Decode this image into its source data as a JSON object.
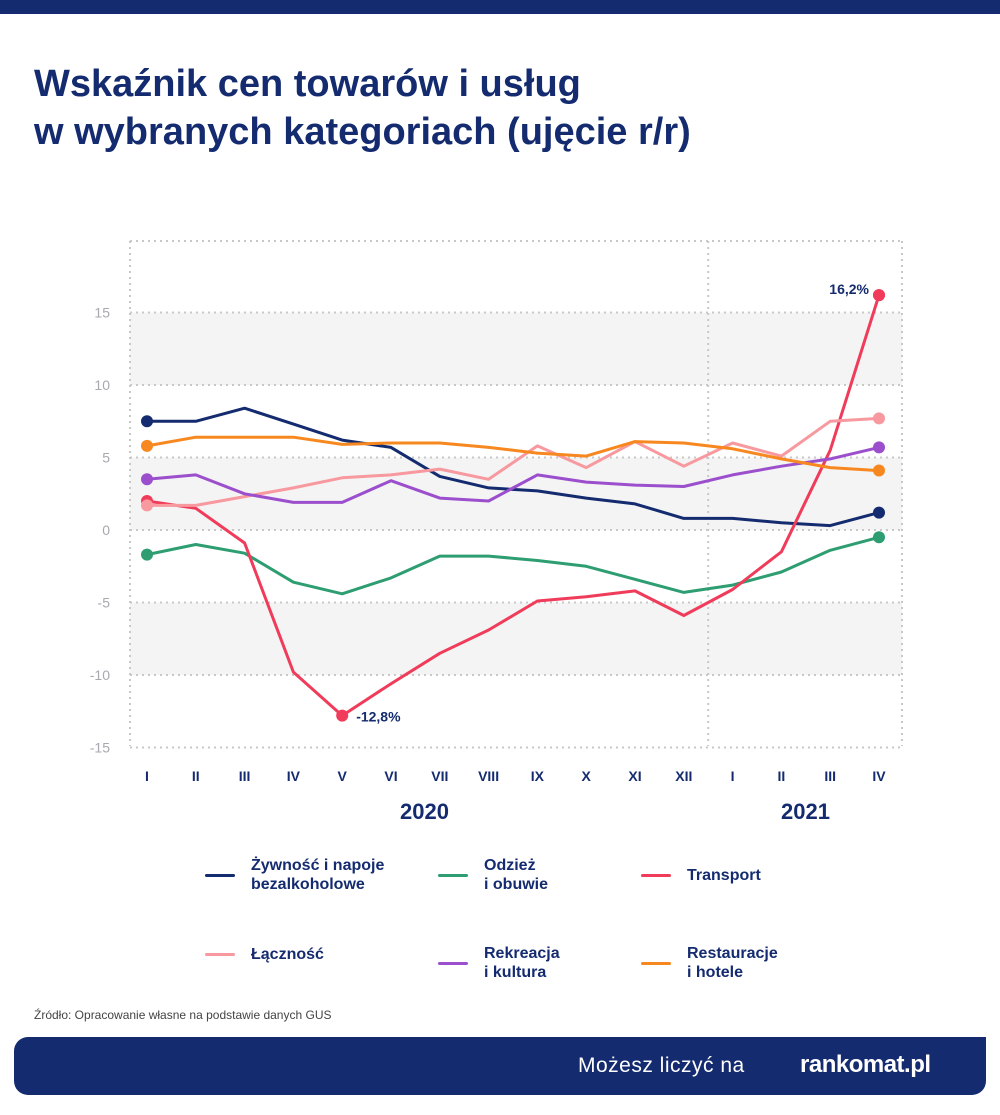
{
  "title": {
    "line1": "Wskaźnik cen towarów i usług",
    "line2": "w wybranych kategoriach (ujęcie r/r)"
  },
  "chart_data": {
    "type": "line",
    "title": "Wskaźnik cen towarów i usług w wybranych kategoriach (ujęcie r/r)",
    "categories": [
      "I",
      "II",
      "III",
      "IV",
      "V",
      "VI",
      "VII",
      "VIII",
      "IX",
      "X",
      "XI",
      "XII",
      "I",
      "II",
      "III",
      "IV"
    ],
    "year_groups": [
      {
        "label": "2020",
        "from": 0,
        "to": 11
      },
      {
        "label": "2021",
        "from": 12,
        "to": 15
      }
    ],
    "yticks": [
      15,
      10,
      5,
      0,
      -5,
      -10,
      -15
    ],
    "ylim": [
      -15,
      20
    ],
    "grid": true,
    "legend_position": "bottom",
    "series": [
      {
        "name": "Żywność i napoje bezalkoholowe",
        "color": "#142b6f",
        "values": [
          7.5,
          7.5,
          8.4,
          7.3,
          6.2,
          5.7,
          3.7,
          2.9,
          2.7,
          2.2,
          1.8,
          0.8,
          0.8,
          0.5,
          0.3,
          1.2
        ]
      },
      {
        "name": "Odzież i obuwie",
        "color": "#2e9e72",
        "values": [
          -1.7,
          -1.0,
          -1.6,
          -3.6,
          -4.4,
          -3.3,
          -1.8,
          -1.8,
          -2.1,
          -2.5,
          -3.4,
          -4.3,
          -3.8,
          -2.9,
          -1.4,
          -0.5
        ]
      },
      {
        "name": "Transport",
        "color": "#f03c5a",
        "values": [
          2.0,
          1.5,
          -0.9,
          -9.8,
          -12.8,
          -10.6,
          -8.5,
          -6.9,
          -4.9,
          -4.6,
          -4.2,
          -5.9,
          -4.1,
          -1.5,
          5.5,
          16.2
        ]
      },
      {
        "name": "Łączność",
        "color": "#f7999e",
        "values": [
          1.7,
          1.7,
          2.3,
          2.9,
          3.6,
          3.8,
          4.2,
          3.5,
          5.8,
          4.3,
          6.1,
          4.4,
          6.0,
          5.1,
          7.5,
          7.7
        ]
      },
      {
        "name": "Rekreacja i kultura",
        "color": "#9b4fcc",
        "values": [
          3.5,
          3.8,
          2.5,
          1.9,
          1.9,
          3.4,
          2.2,
          2.0,
          3.8,
          3.3,
          3.1,
          3.0,
          3.8,
          4.4,
          4.9,
          5.7
        ]
      },
      {
        "name": "Restauracje i hotele",
        "color": "#f7881f",
        "values": [
          5.8,
          6.4,
          6.4,
          6.4,
          5.9,
          6.0,
          6.0,
          5.7,
          5.3,
          5.1,
          6.1,
          6.0,
          5.6,
          4.9,
          4.3,
          4.1
        ]
      }
    ],
    "annotations": [
      {
        "series": 2,
        "index": 4,
        "text": "-12,8%"
      },
      {
        "series": 2,
        "index": 15,
        "text": "16,2%"
      }
    ]
  },
  "legend": {
    "items": [
      {
        "label": "Żywność i napoje\nbezalkoholowe",
        "color": "#142b6f"
      },
      {
        "label": "Odzież\ni obuwie",
        "color": "#2e9e72"
      },
      {
        "label": "Transport",
        "color": "#f03c5a"
      },
      {
        "label": "Łączność",
        "color": "#f7999e"
      },
      {
        "label": "Rekreacja\ni kultura",
        "color": "#9b4fcc"
      },
      {
        "label": "Restauracje\ni hotele",
        "color": "#f7881f"
      }
    ]
  },
  "source": "Źródło: Opracowanie własne na podstawie danych GUS",
  "footer": {
    "text": "Możesz liczyć na",
    "logo": "rankomat.pl"
  },
  "colors": {
    "brand": "#142b6f",
    "band": "#f4f4f4",
    "grid": "#c8c8c8",
    "axis_text": "#a8a8b0"
  }
}
